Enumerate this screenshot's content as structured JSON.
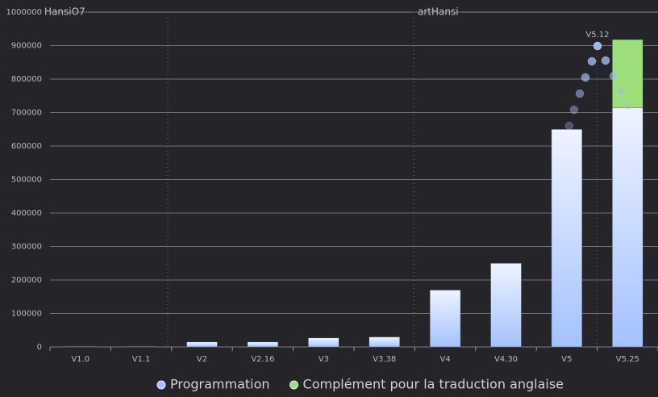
{
  "chart_data": {
    "type": "stacked-bar",
    "categories": [
      "V1.0",
      "V1.1",
      "V2",
      "V2.16",
      "V3",
      "V3.38",
      "V4",
      "V4.30",
      "V5",
      "V5.25"
    ],
    "series": [
      {
        "name": "Programmation",
        "color": "#a4c2ff",
        "values": [
          2000,
          2000,
          15000,
          15000,
          27000,
          30000,
          170000,
          250000,
          650000,
          715000
        ]
      },
      {
        "name": "Complément pour la traduction anglaise",
        "color": "#9be07a",
        "values": [
          0,
          0,
          0,
          0,
          0,
          0,
          0,
          0,
          0,
          203000
        ]
      }
    ],
    "ylim": [
      0,
      1000000
    ],
    "yticks": [
      0,
      100000,
      200000,
      300000,
      400000,
      500000,
      600000,
      700000,
      800000,
      900000,
      1000000
    ],
    "grid": true,
    "legend": "bottom",
    "annotations": [
      "HansiO7",
      "artHansi",
      "V5.12"
    ]
  }
}
